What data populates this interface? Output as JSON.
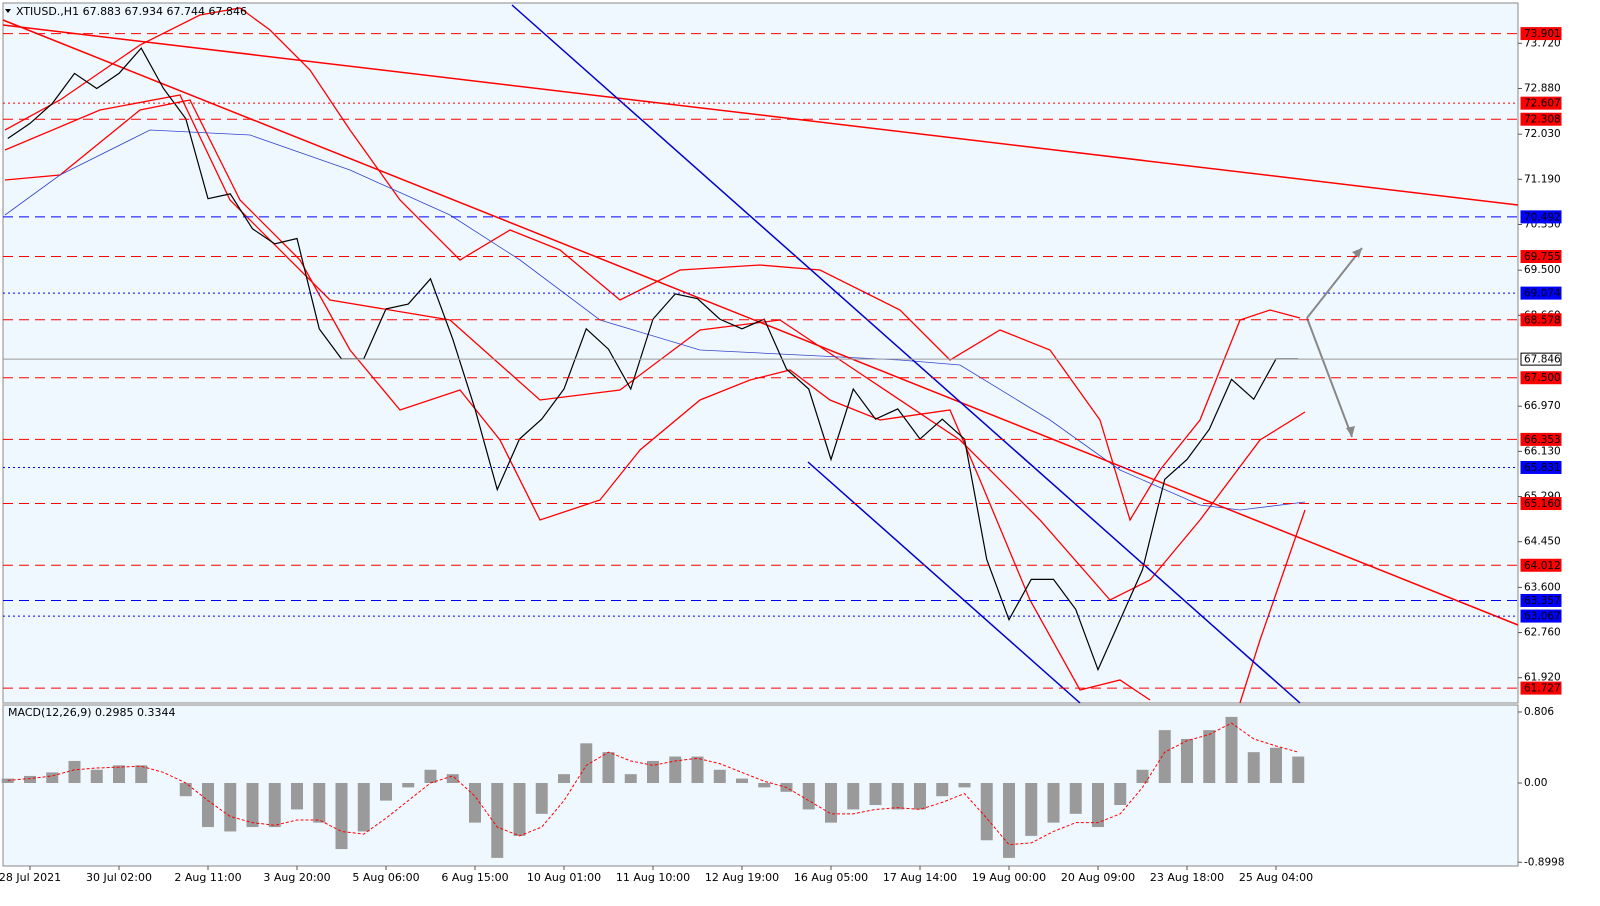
{
  "chart_data": [
    {
      "type": "line",
      "title": "XTIUSD.,H1  67.883 67.934 67.744 67.846",
      "categories": [
        null,
        "28 Jul 2021",
        null,
        null,
        null,
        "30 Jul 02:00",
        null,
        null,
        null,
        "2 Aug 11:00",
        null,
        null,
        null,
        "3 Aug 20:00",
        null,
        null,
        null,
        "5 Aug 06:00",
        null,
        null,
        null,
        "6 Aug 15:00",
        null,
        null,
        null,
        "10 Aug 01:00",
        null,
        null,
        null,
        "11 Aug 10:00",
        null,
        null,
        null,
        "12 Aug 19:00",
        null,
        null,
        null,
        "16 Aug 05:00",
        null,
        null,
        null,
        "17 Aug 14:00",
        null,
        null,
        null,
        "19 Aug 00:00",
        null,
        null,
        null,
        "20 Aug 09:00",
        null,
        null,
        null,
        "23 Aug 18:00",
        null,
        null,
        null,
        "25 Aug 04:00",
        null
      ],
      "values": [
        71.95,
        72.23,
        72.6,
        73.16,
        72.88,
        73.16,
        73.63,
        72.88,
        72.32,
        70.83,
        70.92,
        70.27,
        69.99,
        70.09,
        68.41,
        67.85,
        67.85,
        68.78,
        68.87,
        69.34,
        68.22,
        66.92,
        65.42,
        66.36,
        66.73,
        67.29,
        68.41,
        68.03,
        67.29,
        68.59,
        69.06,
        68.97,
        68.59,
        68.41,
        68.59,
        67.66,
        67.29,
        65.98,
        67.29,
        66.73,
        66.92,
        66.36,
        66.73,
        66.36,
        64.12,
        63.0,
        63.75,
        63.75,
        63.19,
        62.07,
        63.0,
        63.93,
        65.61,
        65.98,
        66.54,
        67.47,
        67.1,
        67.85,
        67.85
      ],
      "color": "#000000",
      "ylim": [
        61.45,
        74.47
      ],
      "yticks": [
        {
          "value": 73.72,
          "label": "73.720"
        },
        {
          "value": 72.88,
          "label": "72.880"
        },
        {
          "value": 72.03,
          "label": "72.030"
        },
        {
          "value": 71.19,
          "label": "71.190"
        },
        {
          "value": 70.35,
          "label": "70.350"
        },
        {
          "value": 69.5,
          "label": "69.500"
        },
        {
          "value": 68.66,
          "label": "68.660"
        },
        {
          "value": 66.97,
          "label": "66.970"
        },
        {
          "value": 66.13,
          "label": "66.130"
        },
        {
          "value": 65.29,
          "label": "65.290"
        },
        {
          "value": 64.45,
          "label": "64.450"
        },
        {
          "value": 63.6,
          "label": "63.600"
        },
        {
          "value": 62.76,
          "label": "62.760"
        },
        {
          "value": 61.92,
          "label": "61.920"
        }
      ],
      "levels": [
        {
          "value": 73.901,
          "label": "73.901",
          "color": "#ff0000",
          "style": "dash"
        },
        {
          "value": 72.607,
          "label": "72.607",
          "color": "#ff0000",
          "style": "dot"
        },
        {
          "value": 72.308,
          "label": "72.308",
          "color": "#ff0000",
          "style": "dash"
        },
        {
          "value": 70.492,
          "label": "70.492",
          "color": "#0000ff",
          "style": "dash"
        },
        {
          "value": 69.755,
          "label": "69.755",
          "color": "#ff0000",
          "style": "dash"
        },
        {
          "value": 69.074,
          "label": "69.074",
          "color": "#0000ff",
          "style": "dot"
        },
        {
          "value": 68.578,
          "label": "68.578",
          "color": "#ff0000",
          "style": "dash"
        },
        {
          "value": 67.846,
          "label": "67.846",
          "color": "#9a9a9a",
          "style": "solid"
        },
        {
          "value": 67.5,
          "label": "67.500",
          "color": "#ff0000",
          "style": "dash"
        },
        {
          "value": 66.353,
          "label": "66.353",
          "color": "#ff0000",
          "style": "dash"
        },
        {
          "value": 65.831,
          "label": "65.831",
          "color": "#0000ff",
          "style": "dot"
        },
        {
          "value": 65.16,
          "label": "65.160",
          "color": "#ff0000",
          "style": "dash"
        },
        {
          "value": 64.012,
          "label": "64.012",
          "color": "#ff0000",
          "style": "dash"
        },
        {
          "value": 63.357,
          "label": "63.357",
          "color": "#0000ff",
          "style": "dash"
        },
        {
          "value": 63.067,
          "label": "63.067",
          "color": "#0000ff",
          "style": "dot"
        },
        {
          "value": 61.727,
          "label": "61.727",
          "color": "#ff0000",
          "style": "dash"
        }
      ]
    },
    {
      "type": "bar",
      "title": "MACD(12,26,9) 0.2985 0.3344",
      "values": [
        0.05,
        0.08,
        0.12,
        0.25,
        0.15,
        0.2,
        0.2,
        0.0,
        -0.15,
        -0.5,
        -0.55,
        -0.5,
        -0.5,
        -0.3,
        -0.45,
        -0.75,
        -0.55,
        -0.2,
        -0.05,
        0.15,
        0.1,
        -0.45,
        -0.85,
        -0.6,
        -0.35,
        0.1,
        0.45,
        0.35,
        0.1,
        0.25,
        0.3,
        0.3,
        0.15,
        0.05,
        -0.05,
        -0.1,
        -0.3,
        -0.45,
        -0.3,
        -0.25,
        -0.3,
        -0.3,
        -0.15,
        -0.05,
        -0.65,
        -0.85,
        -0.6,
        -0.45,
        -0.35,
        -0.5,
        -0.25,
        0.15,
        0.6,
        0.5,
        0.6,
        0.75,
        0.35,
        0.4,
        0.3
      ],
      "color": "#9a9a9a",
      "signal_values": [
        0.03,
        0.05,
        0.08,
        0.15,
        0.17,
        0.18,
        0.19,
        0.12,
        0.0,
        -0.2,
        -0.38,
        -0.45,
        -0.48,
        -0.42,
        -0.42,
        -0.55,
        -0.58,
        -0.4,
        -0.2,
        0.0,
        0.08,
        -0.15,
        -0.5,
        -0.6,
        -0.5,
        -0.2,
        0.2,
        0.35,
        0.25,
        0.2,
        0.25,
        0.28,
        0.22,
        0.12,
        0.02,
        -0.05,
        -0.2,
        -0.35,
        -0.35,
        -0.3,
        -0.28,
        -0.3,
        -0.22,
        -0.12,
        -0.4,
        -0.7,
        -0.68,
        -0.55,
        -0.45,
        -0.45,
        -0.35,
        -0.05,
        0.35,
        0.48,
        0.55,
        0.68,
        0.5,
        0.42,
        0.35
      ],
      "signal_color": "#ff0000",
      "ylim": [
        -0.942,
        0.885
      ],
      "yticks": [
        {
          "value": 0.806,
          "label": "0.806"
        },
        {
          "value": 0,
          "label": "0.00"
        },
        {
          "value": -0.8998,
          "label": "-0.8998"
        }
      ]
    }
  ]
}
